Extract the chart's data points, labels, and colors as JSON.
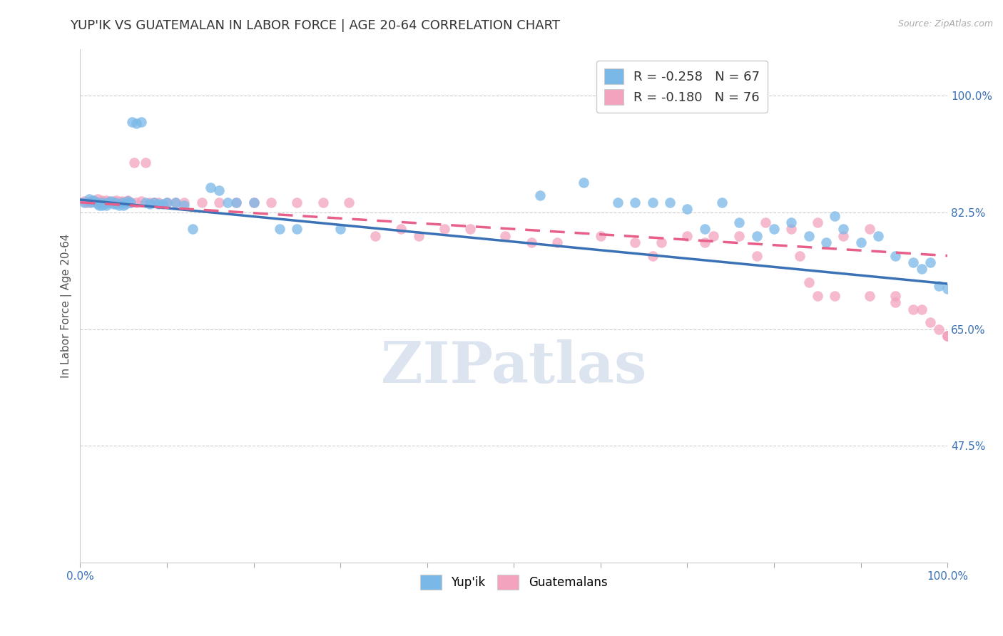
{
  "title": "YUP'IK VS GUATEMALAN IN LABOR FORCE | AGE 20-64 CORRELATION CHART",
  "source_text": "Source: ZipAtlas.com",
  "ylabel": "In Labor Force | Age 20-64",
  "xlim": [
    0.0,
    1.0
  ],
  "ylim": [
    0.3,
    1.07
  ],
  "y_tick_labels_right": [
    "100.0%",
    "82.5%",
    "65.0%",
    "47.5%"
  ],
  "y_ticks_right": [
    1.0,
    0.825,
    0.65,
    0.475
  ],
  "legend_label1": "Yup'ik",
  "legend_label2": "Guatemalans",
  "blue_color": "#7ab8e8",
  "pink_color": "#f4a3be",
  "blue_line_color": "#3a72b5",
  "pink_line_color": "#e8608a",
  "title_fontsize": 13,
  "axis_label_fontsize": 11,
  "tick_fontsize": 11,
  "watermark_text": "ZIPatlas",
  "watermark_color": "#dce4f0",
  "background_color": "#ffffff",
  "blue_scatter_x": [
    0.005,
    0.01,
    0.012,
    0.015,
    0.018,
    0.02,
    0.022,
    0.025,
    0.025,
    0.028,
    0.03,
    0.032,
    0.035,
    0.038,
    0.04,
    0.042,
    0.045,
    0.048,
    0.05,
    0.052,
    0.055,
    0.058,
    0.06,
    0.065,
    0.07,
    0.075,
    0.08,
    0.085,
    0.09,
    0.095,
    0.1,
    0.11,
    0.12,
    0.13,
    0.15,
    0.16,
    0.17,
    0.18,
    0.2,
    0.23,
    0.25,
    0.3,
    0.53,
    0.58,
    0.62,
    0.64,
    0.66,
    0.68,
    0.7,
    0.72,
    0.74,
    0.76,
    0.78,
    0.8,
    0.82,
    0.84,
    0.86,
    0.87,
    0.88,
    0.9,
    0.92,
    0.94,
    0.96,
    0.97,
    0.98,
    0.99,
    1.0
  ],
  "blue_scatter_y": [
    0.84,
    0.845,
    0.84,
    0.843,
    0.841,
    0.838,
    0.836,
    0.84,
    0.835,
    0.838,
    0.836,
    0.84,
    0.842,
    0.838,
    0.84,
    0.838,
    0.835,
    0.84,
    0.835,
    0.838,
    0.842,
    0.84,
    0.96,
    0.958,
    0.96,
    0.84,
    0.838,
    0.84,
    0.838,
    0.838,
    0.84,
    0.84,
    0.836,
    0.8,
    0.862,
    0.858,
    0.84,
    0.84,
    0.84,
    0.8,
    0.8,
    0.8,
    0.85,
    0.87,
    0.84,
    0.84,
    0.84,
    0.84,
    0.83,
    0.8,
    0.84,
    0.81,
    0.79,
    0.8,
    0.81,
    0.79,
    0.78,
    0.82,
    0.8,
    0.78,
    0.79,
    0.76,
    0.75,
    0.74,
    0.75,
    0.715,
    0.71
  ],
  "pink_scatter_x": [
    0.005,
    0.008,
    0.01,
    0.012,
    0.015,
    0.018,
    0.02,
    0.022,
    0.025,
    0.028,
    0.03,
    0.032,
    0.035,
    0.038,
    0.04,
    0.042,
    0.045,
    0.048,
    0.05,
    0.052,
    0.055,
    0.058,
    0.062,
    0.065,
    0.07,
    0.075,
    0.08,
    0.085,
    0.09,
    0.1,
    0.11,
    0.12,
    0.14,
    0.16,
    0.18,
    0.2,
    0.22,
    0.25,
    0.28,
    0.31,
    0.34,
    0.37,
    0.39,
    0.42,
    0.45,
    0.49,
    0.52,
    0.55,
    0.6,
    0.64,
    0.67,
    0.7,
    0.73,
    0.76,
    0.79,
    0.82,
    0.85,
    0.88,
    0.91,
    0.94,
    0.66,
    0.72,
    0.78,
    0.83,
    0.84,
    0.85,
    0.87,
    0.91,
    0.94,
    0.96,
    0.97,
    0.98,
    0.99,
    1.0,
    1.0,
    1.0
  ],
  "pink_scatter_y": [
    0.842,
    0.84,
    0.841,
    0.842,
    0.843,
    0.84,
    0.845,
    0.841,
    0.843,
    0.84,
    0.843,
    0.841,
    0.84,
    0.842,
    0.84,
    0.843,
    0.841,
    0.842,
    0.84,
    0.841,
    0.843,
    0.84,
    0.9,
    0.84,
    0.842,
    0.9,
    0.84,
    0.84,
    0.84,
    0.84,
    0.84,
    0.84,
    0.84,
    0.84,
    0.84,
    0.84,
    0.84,
    0.84,
    0.84,
    0.84,
    0.79,
    0.8,
    0.79,
    0.8,
    0.8,
    0.79,
    0.78,
    0.78,
    0.79,
    0.78,
    0.78,
    0.79,
    0.79,
    0.79,
    0.81,
    0.8,
    0.81,
    0.79,
    0.8,
    0.7,
    0.76,
    0.78,
    0.76,
    0.76,
    0.72,
    0.7,
    0.7,
    0.7,
    0.69,
    0.68,
    0.68,
    0.66,
    0.65,
    0.64,
    0.64,
    0.64
  ],
  "blue_trend_x0": 0.0,
  "blue_trend_y0": 0.844,
  "blue_trend_x1": 1.0,
  "blue_trend_y1": 0.718,
  "pink_trend_x0": 0.0,
  "pink_trend_y0": 0.84,
  "pink_trend_x1": 1.0,
  "pink_trend_y1": 0.76
}
